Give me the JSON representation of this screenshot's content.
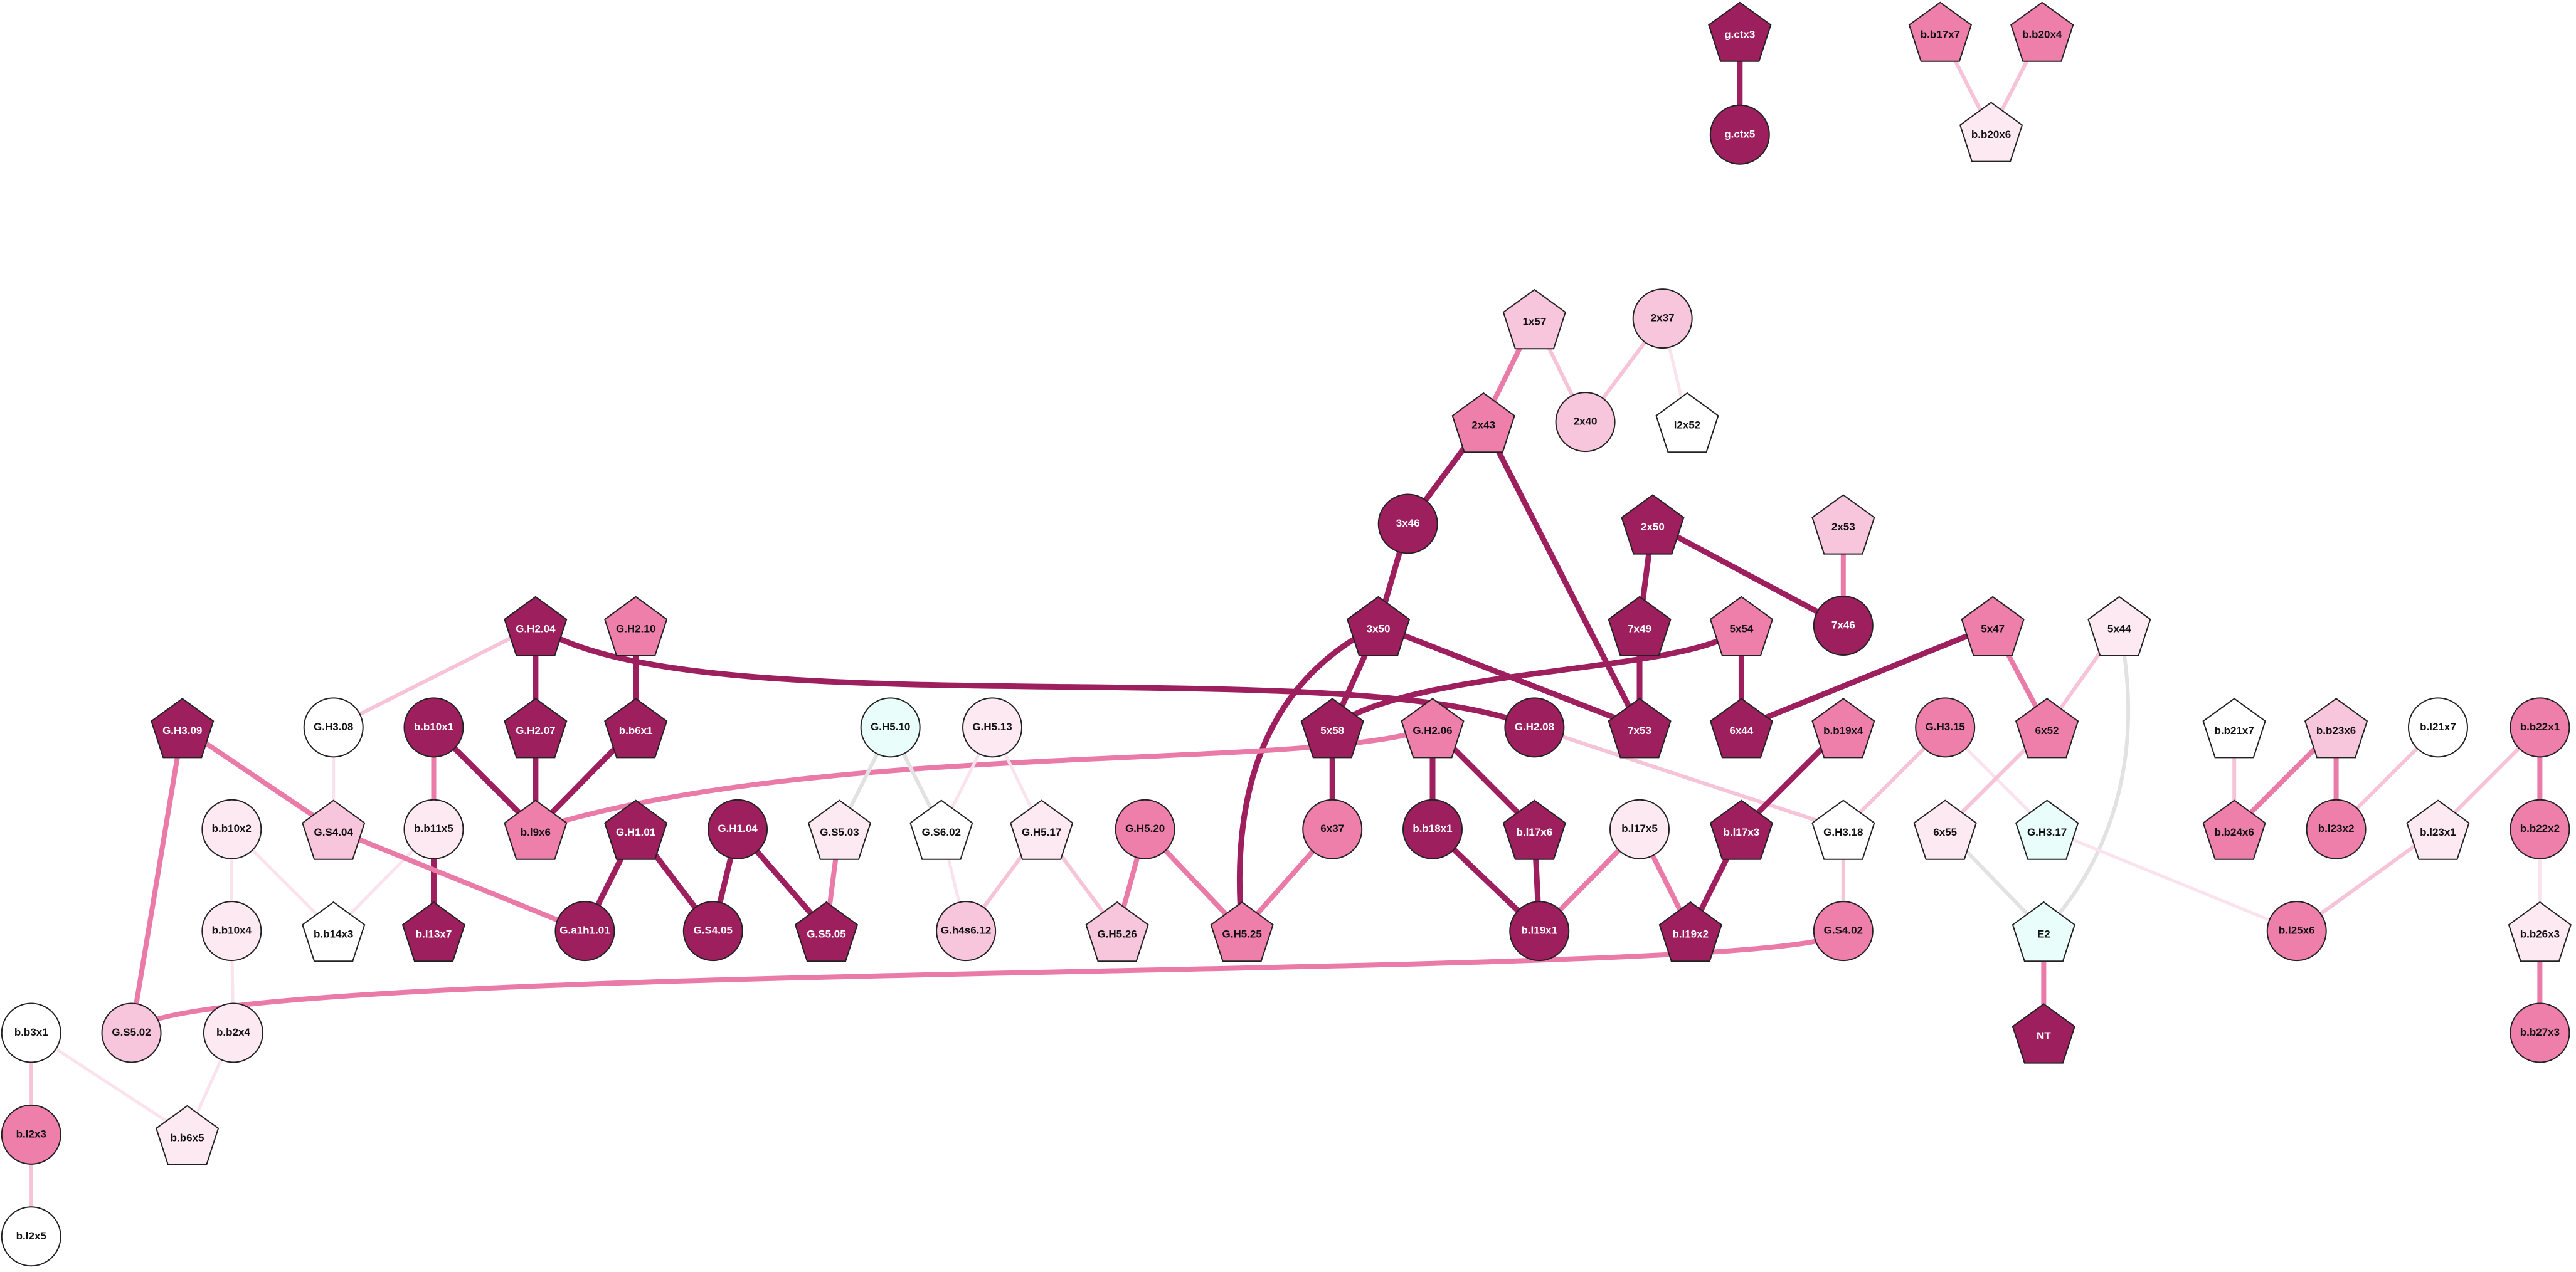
{
  "nodes": [
    {
      "label": "g.ctx3"
    },
    {
      "label": "g.ctx5"
    },
    {
      "label": "b.b17x7"
    },
    {
      "label": "b.b20x4"
    },
    {
      "label": "b.b20x6"
    },
    {
      "label": "1x57"
    },
    {
      "label": "2x37"
    },
    {
      "label": "2x43"
    },
    {
      "label": "2x40"
    },
    {
      "label": "l2x52"
    },
    {
      "label": "3x46"
    },
    {
      "label": "2x50"
    },
    {
      "label": "2x53"
    },
    {
      "label": "3x50"
    },
    {
      "label": "7x49"
    },
    {
      "label": "5x54"
    },
    {
      "label": "7x46"
    },
    {
      "label": "5x47"
    },
    {
      "label": "5x44"
    },
    {
      "label": "G.H2.04"
    },
    {
      "label": "G.H2.10"
    },
    {
      "label": "G.H3.09"
    },
    {
      "label": "G.H3.08"
    },
    {
      "label": "b.b10x1"
    },
    {
      "label": "G.H2.07"
    },
    {
      "label": "b.b6x1"
    },
    {
      "label": "G.H5.10"
    },
    {
      "label": "G.H5.13"
    },
    {
      "label": "5x58"
    },
    {
      "label": "G.H2.06"
    },
    {
      "label": "G.H2.08"
    },
    {
      "label": "7x53"
    },
    {
      "label": "6x44"
    },
    {
      "label": "b.b19x4"
    },
    {
      "label": "G.H3.15"
    },
    {
      "label": "6x52"
    },
    {
      "label": "b.b21x7"
    },
    {
      "label": "b.b23x6"
    },
    {
      "label": "b.l21x7"
    },
    {
      "label": "b.b22x1"
    },
    {
      "label": "b.b10x2"
    },
    {
      "label": "G.S4.04"
    },
    {
      "label": "b.b11x5"
    },
    {
      "label": "b.l9x6"
    },
    {
      "label": "G.H1.01"
    },
    {
      "label": "G.H1.04"
    },
    {
      "label": "G.S5.03"
    },
    {
      "label": "G.S6.02"
    },
    {
      "label": "G.H5.17"
    },
    {
      "label": "G.H5.20"
    },
    {
      "label": "6x37"
    },
    {
      "label": "b.b18x1"
    },
    {
      "label": "b.l17x6"
    },
    {
      "label": "b.l17x5"
    },
    {
      "label": "b.l17x3"
    },
    {
      "label": "G.H3.18"
    },
    {
      "label": "6x55"
    },
    {
      "label": "G.H3.17"
    },
    {
      "label": "b.b24x6"
    },
    {
      "label": "b.l23x2"
    },
    {
      "label": "b.l23x1"
    },
    {
      "label": "b.b22x2"
    },
    {
      "label": "b.b10x4"
    },
    {
      "label": "b.b14x3"
    },
    {
      "label": "b.l13x7"
    },
    {
      "label": "G.a1h1.01"
    },
    {
      "label": "G.S4.05"
    },
    {
      "label": "G.S5.05"
    },
    {
      "label": "G.h4s6.12"
    },
    {
      "label": "G.H5.26"
    },
    {
      "label": "G.H5.25"
    },
    {
      "label": "b.l19x1"
    },
    {
      "label": "b.l19x2"
    },
    {
      "label": "G.S4.02"
    },
    {
      "label": "E2"
    },
    {
      "label": "b.l25x6"
    },
    {
      "label": "b.b26x3"
    },
    {
      "label": "b.b3x1"
    },
    {
      "label": "G.S5.02"
    },
    {
      "label": "b.b2x4"
    },
    {
      "label": "NT"
    },
    {
      "label": "b.b27x3"
    },
    {
      "label": "b.l2x3"
    },
    {
      "label": "b.b6x5"
    },
    {
      "label": "b.l2x5"
    }
  ]
}
